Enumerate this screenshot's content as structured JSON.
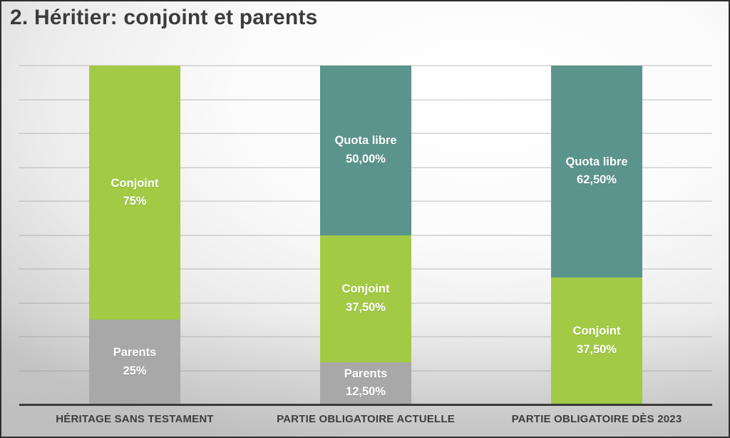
{
  "title": "2. Héritier: conjoint et parents",
  "colors": {
    "green": "#a2ca45",
    "teal": "#5b948c",
    "gray": "#a8a8a8",
    "title_text": "#3c3c3c",
    "axis_line": "#3a3a3a",
    "category_text": "#3d3d3d",
    "segment_label_text": "#ffffff",
    "gridline": "rgba(145,145,145,0.30)"
  },
  "chart_data": {
    "type": "bar",
    "subtype": "stacked",
    "unit": "percent",
    "title": "2. Héritier: conjoint et parents",
    "xlabel": "",
    "ylabel": "",
    "ylim": [
      0,
      100
    ],
    "gridline_step": 10,
    "grid": true,
    "legend": false,
    "categories": [
      "HÉRITAGE SANS TESTAMENT",
      "PARTIE OBLIGATOIRE ACTUELLE",
      "PARTIE OBLIGATOIRE DÈS 2023"
    ],
    "series": [
      {
        "name": "Parents",
        "color": "#a8a8a8",
        "values": [
          25,
          12.5,
          null
        ],
        "value_labels": [
          "25%",
          "12,50%",
          null
        ]
      },
      {
        "name": "Conjoint",
        "color": "#a2ca45",
        "values": [
          75,
          37.5,
          37.5
        ],
        "value_labels": [
          "75%",
          "37,50%",
          "37,50%"
        ]
      },
      {
        "name": "Quota libre",
        "color": "#5b948c",
        "values": [
          null,
          50,
          62.5
        ],
        "value_labels": [
          null,
          "50,00%",
          "62,50%"
        ]
      }
    ]
  }
}
